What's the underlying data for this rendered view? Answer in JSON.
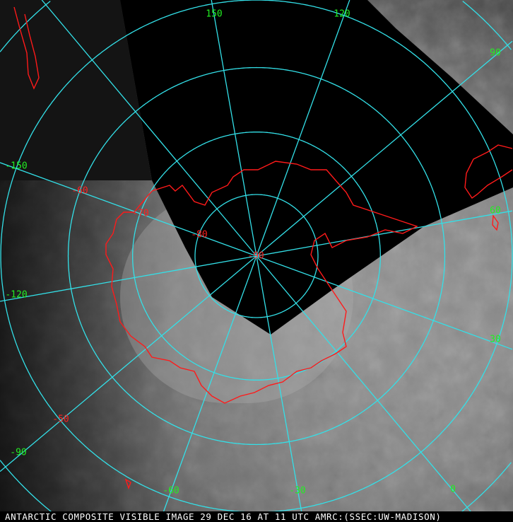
{
  "caption": "ANTARCTIC COMPOSITE VISIBLE IMAGE 29 DEC 16 AT 11 UTC AMRC:(SSEC:UW-MADISON)",
  "projection": "south polar stereographic",
  "colors": {
    "graticule": "#33e0e8",
    "coastline": "#ff1a1a",
    "longitude_labels": "#22ee22",
    "latitude_labels": "#ff2020",
    "no_data": "#000000"
  },
  "graticule": {
    "latitudes": [
      -80,
      -70,
      -60,
      -50,
      -40,
      -30
    ],
    "longitude_step": 30
  },
  "longitude_labels": [
    {
      "text": "150",
      "lon": 150
    },
    {
      "text": "120",
      "lon": 120
    },
    {
      "text": "90",
      "lon": 90
    },
    {
      "text": "-150",
      "lon": -150
    },
    {
      "text": "60",
      "lon": 60
    },
    {
      "text": "-120",
      "lon": -120
    },
    {
      "text": "30",
      "lon": 30
    },
    {
      "text": "-90",
      "lon": -90
    },
    {
      "text": "-60",
      "lon": -60
    },
    {
      "text": "-30",
      "lon": -30
    },
    {
      "text": "0",
      "lon": 0
    }
  ],
  "latitude_labels": [
    {
      "text": "-60",
      "lat": -60
    },
    {
      "text": "-70",
      "lat": -70
    },
    {
      "text": "-80",
      "lat": -80
    },
    {
      "text": "-90",
      "lat": -90
    },
    {
      "text": "-50",
      "lat": -50
    }
  ]
}
